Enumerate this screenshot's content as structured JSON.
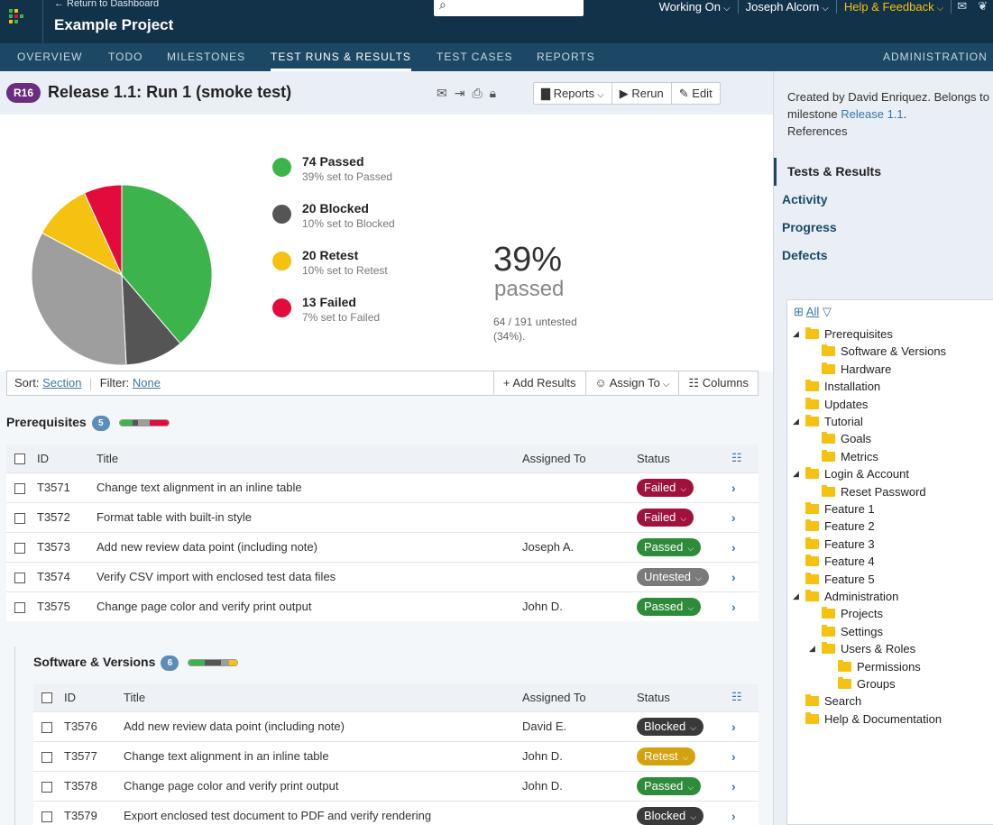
{
  "header": {
    "return_link": "← Return to Dashboard",
    "project_name": "Example Project",
    "search_placeholder": "",
    "working_on": "Working On",
    "user": "Joseph Alcorn",
    "help": "Help & Feedback",
    "colors": {
      "header_bg": "#12324a",
      "tabs_bg": "#1c4866",
      "help": "#f5c211"
    }
  },
  "tabs": [
    {
      "label": "OVERVIEW"
    },
    {
      "label": "TODO"
    },
    {
      "label": "MILESTONES"
    },
    {
      "label": "TEST RUNS & RESULTS"
    },
    {
      "label": "TEST CASES"
    },
    {
      "label": "REPORTS"
    },
    {
      "label": "ADMINISTRATION"
    }
  ],
  "run": {
    "badge": "R16",
    "title": "Release 1.1: Run 1 (smoke test)",
    "buttons": {
      "reports": "Reports",
      "rerun": "Rerun",
      "edit": "Edit"
    }
  },
  "summary": {
    "legend": [
      {
        "title": "74 Passed",
        "sub": "39% set to Passed",
        "color": "#3cb44b"
      },
      {
        "title": "20 Blocked",
        "sub": "10% set to Blocked",
        "color": "#555555"
      },
      {
        "title": "20 Retest",
        "sub": "10% set to Retest",
        "color": "#f5c211"
      },
      {
        "title": "13 Failed",
        "sub": "7% set to Failed",
        "color": "#e30b3b"
      }
    ],
    "percent": "39%",
    "percent_label": "passed",
    "untested": "64 / 191 untested (34%)."
  },
  "chart_data": {
    "type": "pie",
    "labels": [
      "Passed",
      "Blocked",
      "Untested",
      "Retest",
      "Failed"
    ],
    "values": [
      74,
      20,
      64,
      20,
      13
    ],
    "colors": [
      "#3cb44b",
      "#555555",
      "#9e9e9e",
      "#f5c211",
      "#e30b3b"
    ]
  },
  "toolbar": {
    "sort_label": "Sort:",
    "sort_value": "Section",
    "filter_label": "Filter:",
    "filter_value": "None",
    "add_results": "Add Results",
    "assign_to": "Assign To",
    "columns": "Columns"
  },
  "columns": {
    "id": "ID",
    "title": "Title",
    "assigned": "Assigned To",
    "status": "Status"
  },
  "sections": [
    {
      "name": "Prerequisites",
      "count": "5",
      "rows": [
        {
          "id": "T3571",
          "title": "Change text alignment in an inline table",
          "assigned": "",
          "status": "Failed",
          "status_color": "#a0123e"
        },
        {
          "id": "T3572",
          "title": "Format table with built-in style",
          "assigned": "",
          "status": "Failed",
          "status_color": "#a0123e"
        },
        {
          "id": "T3573",
          "title": "Add new review data point (including note)",
          "assigned": "Joseph A.",
          "status": "Passed",
          "status_color": "#2e8b3a"
        },
        {
          "id": "T3574",
          "title": "Verify CSV import with enclosed test data files",
          "assigned": "",
          "status": "Untested",
          "status_color": "#7a7a7a"
        },
        {
          "id": "T3575",
          "title": "Change page color and verify print output",
          "assigned": "John D.",
          "status": "Passed",
          "status_color": "#2e8b3a"
        }
      ]
    },
    {
      "name": "Software & Versions",
      "count": "6",
      "rows": [
        {
          "id": "T3576",
          "title": "Add new review data point (including note)",
          "assigned": "David E.",
          "status": "Blocked",
          "status_color": "#3a3a3a"
        },
        {
          "id": "T3577",
          "title": "Change text alignment in an inline table",
          "assigned": "John D.",
          "status": "Retest",
          "status_color": "#d4a20e"
        },
        {
          "id": "T3578",
          "title": "Change page color and verify print output",
          "assigned": "John D.",
          "status": "Passed",
          "status_color": "#2e8b3a"
        },
        {
          "id": "T3579",
          "title": "Export enclosed test document to PDF and verify rendering",
          "assigned": "",
          "status": "Blocked",
          "status_color": "#3a3a3a"
        }
      ]
    }
  ],
  "sidebar": {
    "desc_prefix": "Created by David Enriquez. Belongs to milestone",
    "milestone_link": "Release 1.1",
    "desc_suffix": ".",
    "references": "References",
    "nav": [
      {
        "label": "Tests & Results"
      },
      {
        "label": "Activity"
      },
      {
        "label": "Progress"
      },
      {
        "label": "Defects"
      }
    ],
    "tree_all": "All",
    "tree": [
      {
        "label": "Prerequisites"
      },
      {
        "label": "Software & Versions"
      },
      {
        "label": "Hardware"
      },
      {
        "label": "Installation"
      },
      {
        "label": "Updates"
      },
      {
        "label": "Tutorial"
      },
      {
        "label": "Goals"
      },
      {
        "label": "Metrics"
      },
      {
        "label": "Login & Account"
      },
      {
        "label": "Reset Password"
      },
      {
        "label": "Feature 1"
      },
      {
        "label": "Feature 2"
      },
      {
        "label": "Feature 3"
      },
      {
        "label": "Feature 4"
      },
      {
        "label": "Feature 5"
      },
      {
        "label": "Administration"
      },
      {
        "label": "Projects"
      },
      {
        "label": "Settings"
      },
      {
        "label": "Users & Roles"
      },
      {
        "label": "Permissions"
      },
      {
        "label": "Groups"
      },
      {
        "label": "Search"
      },
      {
        "label": "Help & Documentation"
      }
    ]
  }
}
